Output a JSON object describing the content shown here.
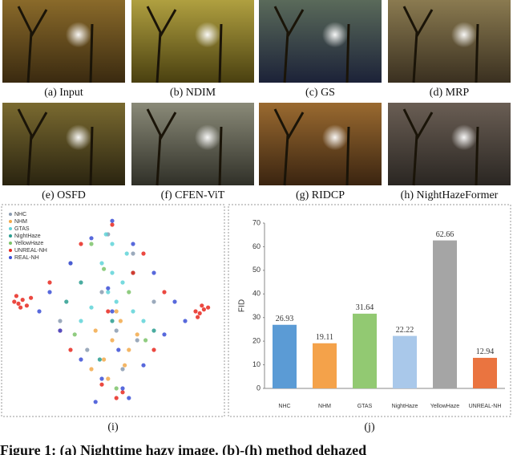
{
  "figure": {
    "images": [
      {
        "caption": "(a) Input"
      },
      {
        "caption": "(b) NDIM"
      },
      {
        "caption": "(c) GS"
      },
      {
        "caption": "(d) MRP"
      },
      {
        "caption": "(e) OSFD"
      },
      {
        "caption": "(f) CFEN-ViT"
      },
      {
        "caption": "(g) RIDCP"
      },
      {
        "caption": "(h) NightHazeFormer"
      }
    ],
    "panel_captions": [
      "(i)",
      "(j)"
    ],
    "caption": "Figure 1: (a) Nighttime hazy image. (b)-(h) method dehazed"
  },
  "chart_data": [
    {
      "type": "scatter",
      "xlim": [
        0,
        100
      ],
      "ylim": [
        0,
        100
      ],
      "legend": "upper left",
      "series": [
        {
          "name": "NHC",
          "color": "#8a9bb0",
          "x": [
            30,
            45,
            60,
            52,
            38,
            70,
            25,
            55,
            48,
            62
          ],
          "y": [
            75,
            60,
            80,
            40,
            30,
            55,
            45,
            20,
            90,
            35
          ]
        },
        {
          "name": "NHM",
          "color": "#f2a94a",
          "x": [
            42,
            50,
            58,
            46,
            54,
            40,
            62,
            48,
            56,
            52
          ],
          "y": [
            40,
            35,
            30,
            25,
            45,
            20,
            38,
            15,
            22,
            50
          ]
        },
        {
          "name": "GTAS",
          "color": "#5fd3d8",
          "x": [
            45,
            50,
            55,
            48,
            52,
            60,
            40,
            57,
            35,
            65,
            50,
            47
          ],
          "y": [
            75,
            70,
            65,
            60,
            55,
            50,
            52,
            80,
            45,
            45,
            85,
            90
          ]
        },
        {
          "name": "NightHaze",
          "color": "#2a9d8f",
          "x": [
            35,
            60,
            50,
            28,
            70,
            44
          ],
          "y": [
            65,
            70,
            45,
            55,
            40,
            25
          ]
        },
        {
          "name": "YellowHaze",
          "color": "#7cc36a",
          "x": [
            40,
            58,
            66,
            32,
            52,
            46
          ],
          "y": [
            85,
            60,
            35,
            38,
            10,
            72
          ]
        },
        {
          "name": "UNREAL-NH",
          "color": "#e8281f",
          "x": [
            3,
            5,
            7,
            9,
            11,
            6,
            4,
            90,
            92,
            94,
            96,
            91,
            93,
            20,
            35,
            50,
            65,
            75,
            45,
            55,
            30,
            70,
            52,
            48,
            25,
            60
          ],
          "y": [
            55,
            54,
            56,
            53,
            57,
            52,
            58,
            50,
            49,
            51,
            52,
            47,
            53,
            65,
            85,
            95,
            80,
            60,
            12,
            8,
            30,
            30,
            5,
            50,
            40,
            70
          ]
        },
        {
          "name": "REAL-NH",
          "color": "#3b4fd6",
          "x": [
            20,
            30,
            40,
            50,
            60,
            70,
            80,
            25,
            35,
            45,
            55,
            65,
            75,
            50,
            42,
            58,
            15,
            85,
            48,
            53
          ],
          "y": [
            60,
            75,
            88,
            97,
            85,
            70,
            55,
            40,
            25,
            15,
            10,
            22,
            38,
            50,
            3,
            5,
            50,
            45,
            62,
            30
          ]
        }
      ]
    },
    {
      "type": "bar",
      "ylabel": "FID",
      "ylim": [
        0,
        70
      ],
      "yticks": [
        0,
        10,
        20,
        30,
        40,
        50,
        60,
        70
      ],
      "categories": [
        "NHC",
        "NHM",
        "GTAS",
        "NightHaze",
        "YellowHaze",
        "UNREAL-NH"
      ],
      "values": [
        26.93,
        19.11,
        31.64,
        22.22,
        62.66,
        12.94
      ],
      "colors": [
        "#5b9bd5",
        "#f4a24a",
        "#92c972",
        "#a9c8ea",
        "#a5a5a5",
        "#ea7440"
      ]
    }
  ]
}
